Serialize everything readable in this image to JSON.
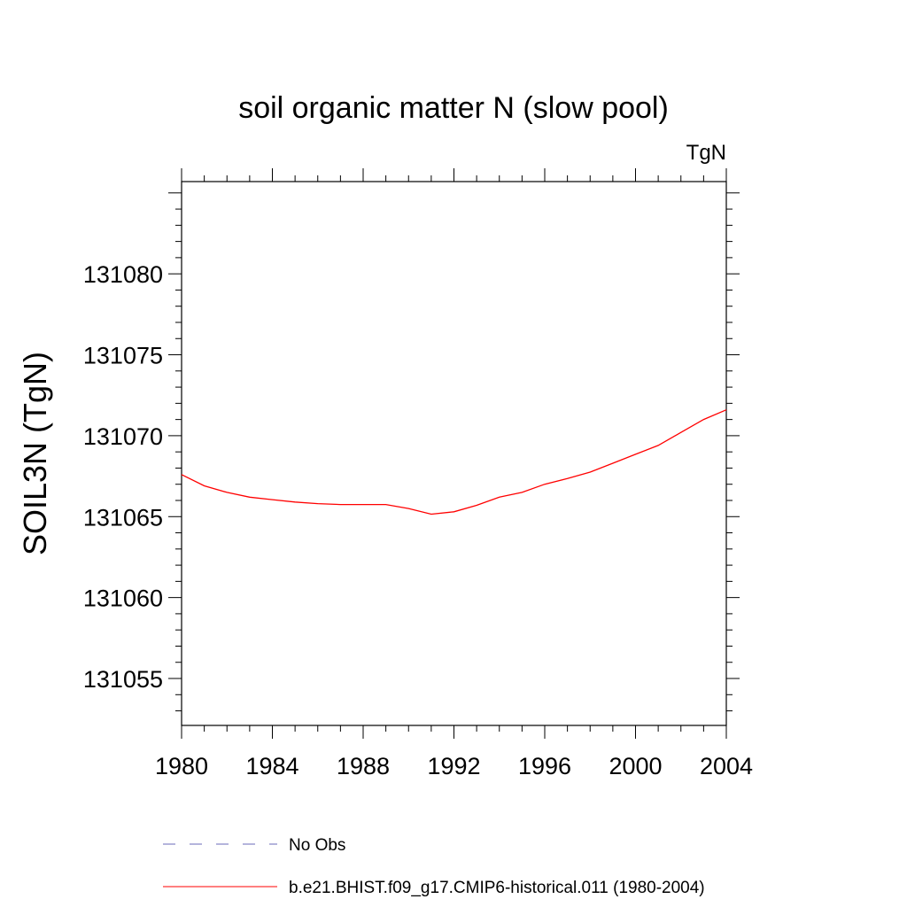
{
  "chart_data": {
    "type": "line",
    "title": "soil organic matter N (slow pool)",
    "units_label": "TgN",
    "xlabel": "",
    "ylabel": "SOIL3N  (TgN)",
    "xlim": [
      1980,
      2004
    ],
    "ylim": [
      131052.1,
      131085.7
    ],
    "x_ticks": [
      "1980",
      "1984",
      "1988",
      "1992",
      "1996",
      "2000",
      "2004"
    ],
    "y_ticks": [
      "131055",
      "131060",
      "131065",
      "131070",
      "131075",
      "131080"
    ],
    "grid": false,
    "legend_position": "bottom",
    "series": [
      {
        "name": "b.e21.BHIST.f09_g17.CMIP6-historical.011 (1980-2004)",
        "color": "#ff0000",
        "style": "solid",
        "x": [
          1980,
          1981,
          1982,
          1983,
          1984,
          1985,
          1986,
          1987,
          1988,
          1989,
          1990,
          1991,
          1992,
          1993,
          1994,
          1995,
          1996,
          1997,
          1998,
          1999,
          2000,
          2001,
          2002,
          2003,
          2004
        ],
        "values": [
          131067.6,
          131066.9,
          131066.5,
          131066.2,
          131066.05,
          131065.9,
          131065.8,
          131065.75,
          131065.75,
          131065.75,
          131065.5,
          131065.15,
          131065.3,
          131065.7,
          131066.2,
          131066.5,
          131067.0,
          131067.35,
          131067.75,
          131068.3,
          131068.85,
          131069.4,
          131070.2,
          131071.0,
          131071.6
        ]
      }
    ],
    "legend": [
      {
        "label": "No Obs",
        "color": "#6a6ab8",
        "style": "dashed"
      },
      {
        "label": "b.e21.BHIST.f09_g17.CMIP6-historical.011 (1980-2004)",
        "color": "#ff0000",
        "style": "solid"
      }
    ]
  }
}
